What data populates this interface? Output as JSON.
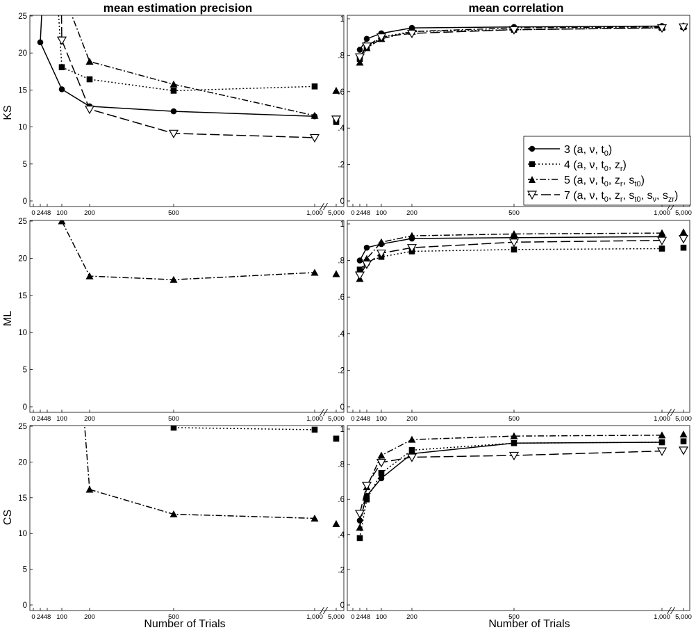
{
  "column_titles": [
    "mean estimation precision",
    "mean correlation"
  ],
  "row_labels": [
    "KS",
    "ML",
    "CS"
  ],
  "x_axis_label": "Number of Trials",
  "legend": {
    "position": "lower-right of top-right panel",
    "items": [
      {
        "text": "3 (a, ν, t",
        "sub": "0",
        "after": ")",
        "marker": "filled-circle",
        "line": "solid"
      },
      {
        "text": "4 (a, ν, t",
        "sub": "0",
        "after": ", z",
        "sub2": "r",
        "after2": ")",
        "marker": "filled-square",
        "line": "dotted"
      },
      {
        "text": "5 (a, ν, t",
        "sub": "0",
        "after": ", z",
        "sub2": "r",
        "after2": ", s",
        "sub3": "t0",
        "after3": ")",
        "marker": "filled-triangle",
        "line": "dashdot"
      },
      {
        "text": "7 (a, ν, t",
        "sub": "0",
        "after": ", z",
        "sub2": "r",
        "after2": ", s",
        "sub3": "t0",
        "after3": ", s",
        "sub4": "ν",
        "after4": ", s",
        "sub5": "zr",
        "after5": ")",
        "marker": "open-down-triangle",
        "line": "longdash"
      }
    ]
  },
  "colors": {
    "ink": "#000000",
    "background": "#ffffff",
    "open_marker_fill": "#ffffff"
  },
  "chart_data": [
    {
      "type": "line",
      "row": "KS",
      "measure": "mean estimation precision",
      "x_ticks": [
        "0",
        "24",
        "48",
        "100",
        "200",
        "500",
        "1,000",
        "5,000"
      ],
      "x_axis_break": "between 1,000 and 5,000",
      "ylim": [
        0,
        26
      ],
      "y_ticks": [
        "0",
        "5",
        "10",
        "15",
        "20",
        "25"
      ],
      "grid": false,
      "series": [
        {
          "legend": "3",
          "x": [
            24,
            100,
            200,
            500,
            1000
          ],
          "y": [
            22.3,
            15.7,
            13.3,
            12.6,
            11.9
          ],
          "point_5000": 11.2
        },
        {
          "legend": "4",
          "x": [
            100,
            200,
            500,
            1000
          ],
          "y": [
            18.8,
            17.1,
            15.5,
            16.1
          ],
          "point_5000": 11.1
        },
        {
          "legend": "5",
          "x": [
            200,
            500,
            1000
          ],
          "y": [
            19.6,
            16.4,
            12.0
          ],
          "point_5000": 15.5
        },
        {
          "legend": "7",
          "x": [
            100,
            200,
            500,
            1000
          ],
          "y": [
            22.6,
            12.9,
            9.5,
            8.9
          ],
          "point_5000": 11.5
        }
      ]
    },
    {
      "type": "line",
      "row": "KS",
      "measure": "mean correlation",
      "x_ticks": [
        "0",
        "24",
        "48",
        "100",
        "200",
        "500",
        "1,000",
        "5,000"
      ],
      "x_axis_break": "between 1,000 and 5,000",
      "ylim": [
        0,
        1
      ],
      "y_ticks": [
        "0",
        ".2",
        ".4",
        ".6",
        ".8",
        "1"
      ],
      "grid": false,
      "series": [
        {
          "legend": "3",
          "x": [
            24,
            48,
            100,
            200,
            500,
            1000
          ],
          "y": [
            0.83,
            0.89,
            0.92,
            0.95,
            0.955,
            0.96
          ],
          "point_5000": 0.96
        },
        {
          "legend": "4",
          "x": [
            24,
            48,
            100,
            200,
            500,
            1000
          ],
          "y": [
            0.78,
            0.84,
            0.9,
            0.93,
            0.94,
            0.95
          ],
          "point_5000": 0.955
        },
        {
          "legend": "5",
          "x": [
            24,
            48,
            100,
            200,
            500,
            1000
          ],
          "y": [
            0.76,
            0.84,
            0.89,
            0.93,
            0.95,
            0.955
          ],
          "point_5000": 0.96
        },
        {
          "legend": "7",
          "x": [
            24,
            48,
            100,
            200,
            500,
            1000
          ],
          "y": [
            0.79,
            0.85,
            0.9,
            0.92,
            0.94,
            0.95
          ],
          "point_5000": 0.955
        }
      ]
    },
    {
      "type": "line",
      "row": "ML",
      "measure": "mean estimation precision",
      "x_ticks": [
        "0",
        "24",
        "48",
        "100",
        "200",
        "500",
        "1,000",
        "5,000"
      ],
      "x_axis_break": "between 1,000 and 5,000",
      "ylim": [
        0,
        26
      ],
      "y_ticks": [
        "0",
        "5",
        "10",
        "15",
        "20",
        "25"
      ],
      "grid": false,
      "series": [
        {
          "legend": "5",
          "x": [
            100,
            200,
            500,
            1000
          ],
          "y": [
            26.0,
            18.3,
            17.8,
            18.8
          ],
          "point_5000": 18.6
        }
      ]
    },
    {
      "type": "line",
      "row": "ML",
      "measure": "mean correlation",
      "x_ticks": [
        "0",
        "24",
        "48",
        "100",
        "200",
        "500",
        "1,000",
        "5,000"
      ],
      "x_axis_break": "between 1,000 and 5,000",
      "ylim": [
        0,
        1
      ],
      "y_ticks": [
        "0",
        ".2",
        ".4",
        ".6",
        ".8",
        "1"
      ],
      "grid": false,
      "series": [
        {
          "legend": "3",
          "x": [
            24,
            48,
            100,
            200,
            500,
            1000
          ],
          "y": [
            0.8,
            0.87,
            0.89,
            0.92,
            0.925,
            0.93
          ],
          "point_5000": 0.93
        },
        {
          "legend": "4",
          "x": [
            24,
            48,
            100,
            200,
            500,
            1000
          ],
          "y": [
            0.75,
            0.79,
            0.82,
            0.85,
            0.86,
            0.865
          ],
          "point_5000": 0.87
        },
        {
          "legend": "5",
          "x": [
            24,
            48,
            100,
            200,
            500,
            1000
          ],
          "y": [
            0.7,
            0.81,
            0.9,
            0.935,
            0.945,
            0.95
          ],
          "point_5000": 0.955
        },
        {
          "legend": "7",
          "x": [
            24,
            48,
            100,
            200,
            500,
            1000
          ],
          "y": [
            0.72,
            0.78,
            0.84,
            0.87,
            0.9,
            0.91
          ],
          "point_5000": 0.92
        }
      ]
    },
    {
      "type": "line",
      "row": "CS",
      "measure": "mean estimation precision",
      "x_ticks": [
        "0",
        "24",
        "48",
        "100",
        "200",
        "500",
        "1,000",
        "5,000"
      ],
      "x_axis_break": "between 1,000 and 5,000",
      "ylim": [
        0,
        26
      ],
      "y_ticks": [
        "0",
        "5",
        "10",
        "15",
        "20",
        "25"
      ],
      "grid": false,
      "series": [
        {
          "legend": "4",
          "x": [
            500,
            1000
          ],
          "y": [
            25.8,
            25.5
          ],
          "point_5000": 24.2
        },
        {
          "legend": "5",
          "x": [
            200,
            500,
            1000
          ],
          "y": [
            16.8,
            13.2,
            12.6
          ],
          "point_5000": 11.8
        }
      ]
    },
    {
      "type": "line",
      "row": "CS",
      "measure": "mean correlation",
      "x_ticks": [
        "0",
        "24",
        "48",
        "100",
        "200",
        "500",
        "1,000",
        "5,000"
      ],
      "x_axis_break": "between 1,000 and 5,000",
      "ylim": [
        0,
        1
      ],
      "y_ticks": [
        "0",
        ".2",
        ".4",
        ".6",
        ".8",
        "1"
      ],
      "grid": false,
      "series": [
        {
          "legend": "3",
          "x": [
            24,
            48,
            100,
            200,
            500,
            1000
          ],
          "y": [
            0.48,
            0.62,
            0.72,
            0.86,
            0.92,
            0.925
          ],
          "point_5000": 0.93
        },
        {
          "legend": "4",
          "x": [
            24,
            48,
            100,
            200,
            500,
            1000
          ],
          "y": [
            0.38,
            0.6,
            0.75,
            0.88,
            0.92,
            0.925
          ],
          "point_5000": 0.93
        },
        {
          "legend": "5",
          "x": [
            24,
            48,
            100,
            200,
            500,
            1000
          ],
          "y": [
            0.44,
            0.67,
            0.85,
            0.94,
            0.96,
            0.965
          ],
          "point_5000": 0.97
        },
        {
          "legend": "7",
          "x": [
            24,
            48,
            100,
            200,
            500,
            1000
          ],
          "y": [
            0.52,
            0.68,
            0.81,
            0.84,
            0.85,
            0.875
          ],
          "point_5000": 0.88
        }
      ]
    }
  ]
}
